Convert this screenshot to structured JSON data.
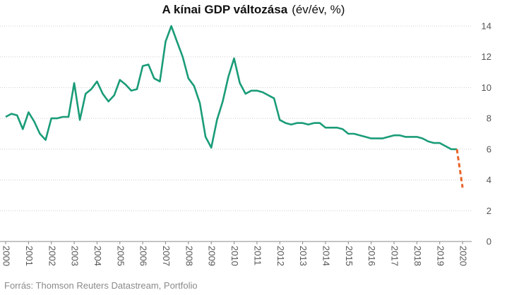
{
  "title": "A kínai GDP változása",
  "subtitle": "(év/év, %)",
  "source": "Forrás: Thomson Reuters Datastream, Portfolio",
  "colors": {
    "main": "#1a9c78",
    "forecast": "#e8652a",
    "grid": "#cccccc",
    "axis": "#888888"
  },
  "chart_data": {
    "type": "line",
    "title": "A kínai GDP változása",
    "subtitle": "(év/év, %)",
    "xlabel": "",
    "ylabel": "",
    "ylim": [
      0,
      14
    ],
    "xlim": [
      2000,
      2020.4
    ],
    "y_axis_side": "right",
    "grid": true,
    "yticks": [
      0,
      2,
      4,
      6,
      8,
      10,
      12,
      14
    ],
    "xticks": [
      "2000",
      "2001",
      "2002",
      "2003",
      "2004",
      "2005",
      "2006",
      "2007",
      "2008",
      "2009",
      "2010",
      "2011",
      "2012",
      "2013",
      "2014",
      "2015",
      "2016",
      "2017",
      "2018",
      "2019",
      "2020"
    ],
    "series": [
      {
        "style": "solid",
        "color": "#1a9c78",
        "x": [
          2000.0,
          2000.25,
          2000.5,
          2000.75,
          2001.0,
          2001.25,
          2001.5,
          2001.75,
          2002.0,
          2002.25,
          2002.5,
          2002.75,
          2003.0,
          2003.25,
          2003.5,
          2003.75,
          2004.0,
          2004.25,
          2004.5,
          2004.75,
          2005.0,
          2005.25,
          2005.5,
          2005.75,
          2006.0,
          2006.25,
          2006.5,
          2006.75,
          2007.0,
          2007.25,
          2007.5,
          2007.75,
          2008.0,
          2008.25,
          2008.5,
          2008.75,
          2009.0,
          2009.25,
          2009.5,
          2009.75,
          2010.0,
          2010.25,
          2010.5,
          2010.75,
          2011.0,
          2011.25,
          2011.5,
          2011.75,
          2012.0,
          2012.25,
          2012.5,
          2012.75,
          2013.0,
          2013.25,
          2013.5,
          2013.75,
          2014.0,
          2014.25,
          2014.5,
          2014.75,
          2015.0,
          2015.25,
          2015.5,
          2015.75,
          2016.0,
          2016.25,
          2016.5,
          2016.75,
          2017.0,
          2017.25,
          2017.5,
          2017.75,
          2018.0,
          2018.25,
          2018.5,
          2018.75,
          2019.0,
          2019.25,
          2019.5,
          2019.75
        ],
        "values": [
          8.1,
          8.3,
          8.2,
          7.3,
          8.4,
          7.8,
          7.0,
          6.6,
          8.0,
          8.0,
          8.1,
          8.1,
          10.3,
          7.9,
          9.6,
          9.9,
          10.4,
          9.6,
          9.1,
          9.5,
          10.5,
          10.2,
          9.8,
          9.9,
          11.4,
          11.5,
          10.6,
          10.4,
          13.0,
          14.0,
          13.0,
          12.0,
          10.6,
          10.1,
          9.0,
          6.8,
          6.1,
          7.9,
          9.1,
          10.7,
          11.9,
          10.3,
          9.6,
          9.8,
          9.8,
          9.7,
          9.5,
          9.3,
          7.9,
          7.7,
          7.6,
          7.7,
          7.7,
          7.6,
          7.7,
          7.7,
          7.4,
          7.4,
          7.4,
          7.3,
          7.0,
          7.0,
          6.9,
          6.8,
          6.7,
          6.7,
          6.7,
          6.8,
          6.9,
          6.9,
          6.8,
          6.8,
          6.8,
          6.7,
          6.5,
          6.4,
          6.4,
          6.2,
          6.0,
          6.0
        ]
      },
      {
        "style": "dashed",
        "color": "#e8652a",
        "x": [
          2019.75,
          2020.0
        ],
        "values": [
          6.0,
          3.5
        ]
      }
    ]
  }
}
